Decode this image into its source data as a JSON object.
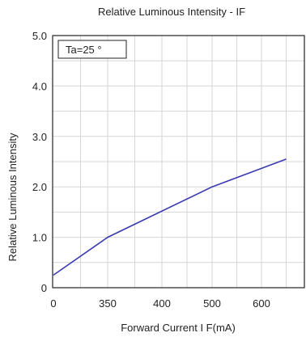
{
  "chart_data": {
    "type": "line",
    "title": "Relative Luminous Intensity - IF",
    "xlabel": "Forward Current I F(mA)",
    "ylabel": "Relative Luminous Intensity",
    "annotation": "Ta=25 °",
    "x_tick_labels": [
      "0",
      "350",
      "400",
      "500",
      "600"
    ],
    "y_tick_labels": [
      "0",
      "1.0",
      "2.0",
      "3.0",
      "4.0",
      "5.0"
    ],
    "ylim": [
      0,
      5
    ],
    "grid": true,
    "series": [
      {
        "color": "#3a3ab0",
        "x": [
          0,
          350,
          500,
          650
        ],
        "y": [
          0.25,
          1.0,
          2.0,
          2.55
        ]
      }
    ]
  }
}
